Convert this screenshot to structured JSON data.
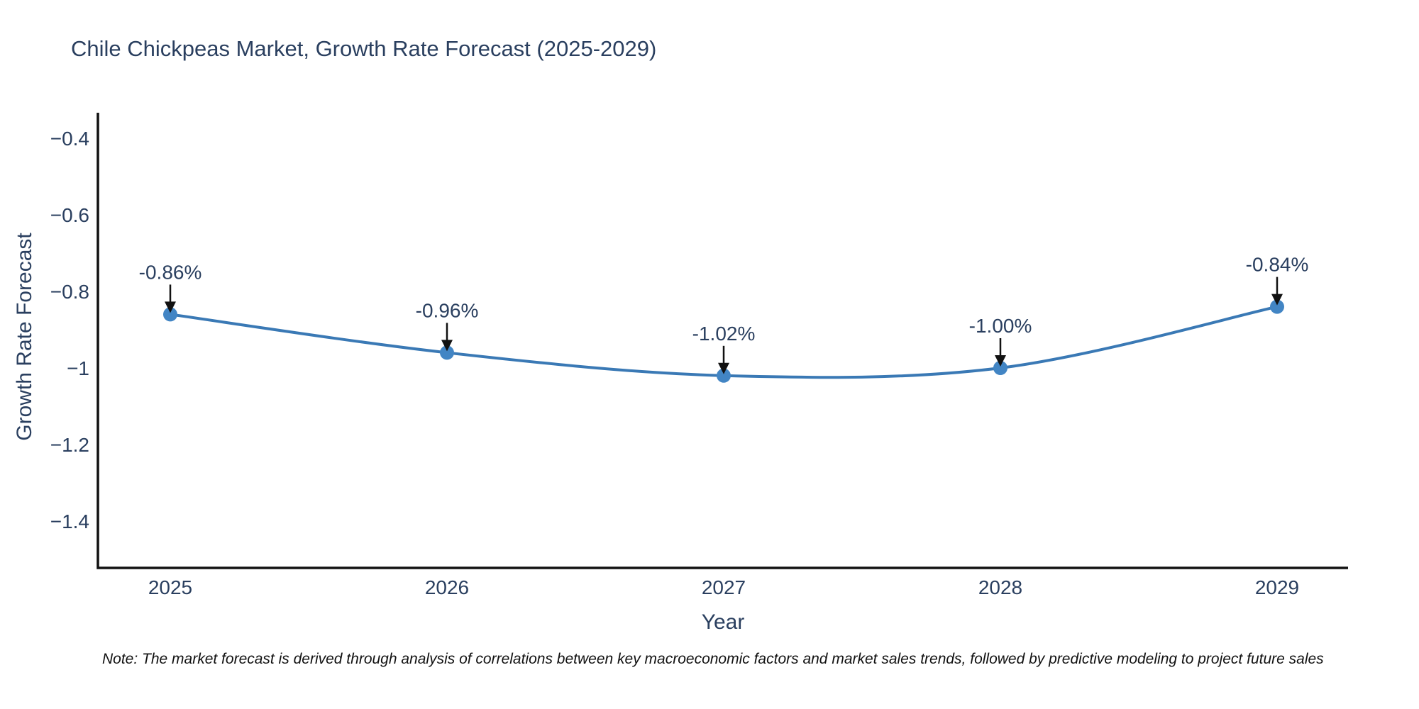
{
  "page": {
    "background": "#ffffff"
  },
  "chart_data": {
    "type": "line",
    "title": "Chile Chickpeas Market, Growth Rate Forecast (2025-2029)",
    "xlabel": "Year",
    "ylabel": "Growth Rate Forecast",
    "x": [
      2025,
      2026,
      2027,
      2028,
      2029
    ],
    "categories": [
      "2025",
      "2026",
      "2027",
      "2028",
      "2029"
    ],
    "series": [
      {
        "name": "Growth Rate Forecast",
        "values": [
          -0.86,
          -0.96,
          -1.02,
          -1.0,
          -0.84
        ]
      }
    ],
    "point_labels": [
      "-0.86%",
      "-0.96%",
      "-1.02%",
      "-1.00%",
      "-0.84%"
    ],
    "y_tick_values": [
      -0.4,
      -0.6,
      -0.8,
      -1,
      -1.2,
      -1.4
    ],
    "y_tick_labels": [
      "−0.4",
      "−0.6",
      "−0.8",
      "−1",
      "−1.2",
      "−1.4"
    ],
    "ylim": [
      -1.52,
      -0.34
    ],
    "line_shape": "spline",
    "grid": false,
    "legend": false,
    "colors": {
      "line": "#3a79b5",
      "marker": "#4285c4",
      "axis": "#111111",
      "text": "#2a3f5f",
      "annotation_arrow": "#111111"
    }
  },
  "note": "Note: The market forecast is derived through analysis of correlations between key macroeconomic factors and market sales trends, followed by predictive modeling to project future sales"
}
